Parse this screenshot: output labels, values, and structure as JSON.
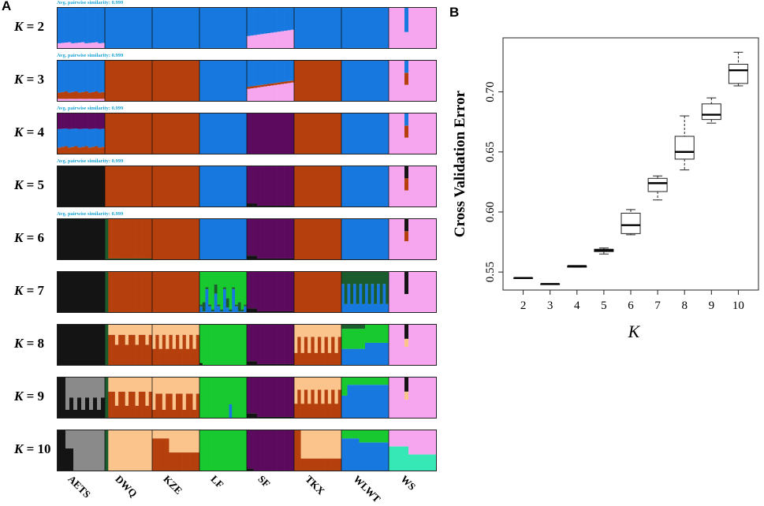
{
  "panel_a": {
    "letter": "A",
    "similarity_text": "Avg. pairwise similarity: 0.999",
    "rows": [
      {
        "k_prefix": "K",
        "k_label": " = 2",
        "has_similarity": true
      },
      {
        "k_prefix": "K",
        "k_label": " = 3",
        "has_similarity": true
      },
      {
        "k_prefix": "K",
        "k_label": " = 4",
        "has_similarity": true
      },
      {
        "k_prefix": "K",
        "k_label": " = 5",
        "has_similarity": true
      },
      {
        "k_prefix": "K",
        "k_label": " = 6",
        "has_similarity": true
      },
      {
        "k_prefix": "K",
        "k_label": " = 7",
        "has_similarity": false
      },
      {
        "k_prefix": "K",
        "k_label": " = 8",
        "has_similarity": false
      },
      {
        "k_prefix": "K",
        "k_label": " = 9",
        "has_similarity": false
      },
      {
        "k_prefix": "K",
        "k_label": " = 10",
        "has_similarity": false
      }
    ],
    "populations": [
      "AETS",
      "DWQ",
      "KZE",
      "LF",
      "SF",
      "TKX",
      "WLWT",
      "WS"
    ],
    "cluster_colors": {
      "blue": "#1779e0",
      "pink": "#f6a6ef",
      "rust": "#b5400d",
      "purple": "#5c0a5e",
      "black": "#141414",
      "darkgreen": "#1a5c2d",
      "green": "#18c92f",
      "peach": "#fbc48d",
      "gray": "#8a8a8a",
      "aqua": "#36e8b6"
    }
  },
  "chart_data": {
    "letter": "B",
    "type": "boxplot",
    "title": "",
    "xlabel": "K",
    "ylabel": "Cross Validation Error",
    "x_ticks": [
      "2",
      "3",
      "4",
      "5",
      "6",
      "7",
      "8",
      "9",
      "10"
    ],
    "y_ticks": [
      "0.55",
      "0.60",
      "0.65",
      "0.70"
    ],
    "y_tick_values": [
      0.55,
      0.6,
      0.65,
      0.7
    ],
    "ylim": [
      0.535,
      0.745
    ],
    "boxes": [
      {
        "k": 2,
        "min": 0.545,
        "q1": 0.545,
        "median": 0.545,
        "q3": 0.545,
        "max": 0.545
      },
      {
        "k": 3,
        "min": 0.54,
        "q1": 0.54,
        "median": 0.54,
        "q3": 0.54,
        "max": 0.54
      },
      {
        "k": 4,
        "min": 0.554,
        "q1": 0.554,
        "median": 0.555,
        "q3": 0.555,
        "max": 0.555
      },
      {
        "k": 5,
        "min": 0.565,
        "q1": 0.567,
        "median": 0.568,
        "q3": 0.569,
        "max": 0.57
      },
      {
        "k": 6,
        "min": 0.581,
        "q1": 0.582,
        "median": 0.589,
        "q3": 0.599,
        "max": 0.602
      },
      {
        "k": 7,
        "min": 0.61,
        "q1": 0.617,
        "median": 0.624,
        "q3": 0.628,
        "max": 0.63
      },
      {
        "k": 8,
        "min": 0.635,
        "q1": 0.644,
        "median": 0.65,
        "q3": 0.663,
        "max": 0.68
      },
      {
        "k": 9,
        "min": 0.674,
        "q1": 0.677,
        "median": 0.681,
        "q3": 0.69,
        "max": 0.695
      },
      {
        "k": 10,
        "min": 0.705,
        "q1": 0.707,
        "median": 0.718,
        "q3": 0.723,
        "max": 0.733
      }
    ]
  }
}
